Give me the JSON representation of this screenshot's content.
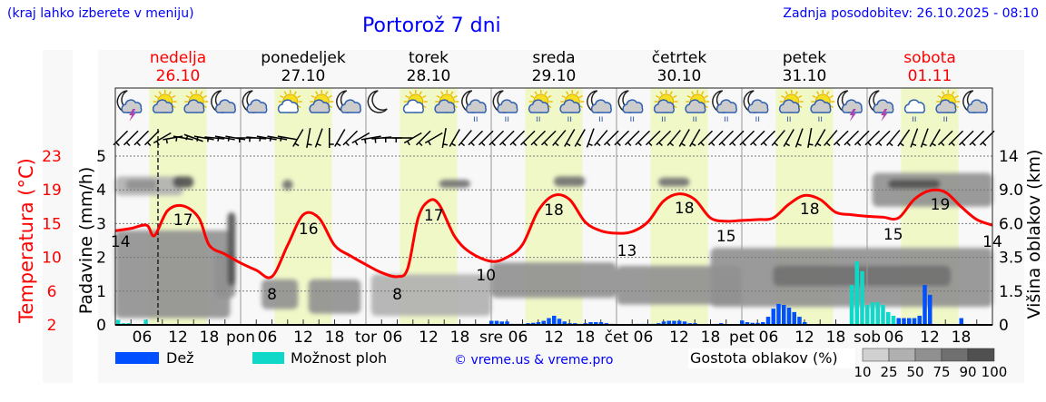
{
  "header": {
    "menu_hint": "(kraj lahko izberete v meniju)",
    "title": "Portorož 7 dni",
    "updated": "Zadnja posodobitev: 26.10.2025 - 08:10"
  },
  "footer": {
    "rain_label": "Dež",
    "showers_label": "Možnost ploh",
    "credit": "© vreme.us & vreme.pro",
    "cloud_legend_label": "Gostota oblakov (%)",
    "cloud_legend_ticks": [
      "10",
      "25",
      "50",
      "75",
      "90",
      "100"
    ]
  },
  "colors": {
    "rain": "#0050ff",
    "showers": "#10d8c8",
    "temperature": "#ff0000",
    "weekend": "#ff0000",
    "daylight": "#f0f8c8",
    "cloud_levels": [
      "#d0d0d0",
      "#b0b0b0",
      "#909090",
      "#707070",
      "#505050"
    ]
  },
  "chart_data": {
    "type": "line",
    "title": "Portorož 7 dni",
    "now_hour": 8.17,
    "days": [
      {
        "name": "nedelja",
        "date": "26.10",
        "weekend": true,
        "abbr": ""
      },
      {
        "name": "ponedeljek",
        "date": "27.10",
        "weekend": false,
        "abbr": "pon"
      },
      {
        "name": "torek",
        "date": "28.10",
        "weekend": false,
        "abbr": "tor"
      },
      {
        "name": "sreda",
        "date": "29.10",
        "weekend": false,
        "abbr": "sre"
      },
      {
        "name": "četrtek",
        "date": "30.10",
        "weekend": false,
        "abbr": "čet"
      },
      {
        "name": "petek",
        "date": "31.10",
        "weekend": false,
        "abbr": "pet"
      },
      {
        "name": "sobota",
        "date": "01.11",
        "weekend": true,
        "abbr": "sob"
      }
    ],
    "hour_ticks": [
      "06",
      "12",
      "18"
    ],
    "left_axis": {
      "label": "Padavine (mm/h)",
      "ticks": [
        "0",
        "1",
        "2",
        "3",
        "4",
        "5"
      ],
      "ylim": [
        0,
        5
      ]
    },
    "temp_axis": {
      "label": "Temperatura (°C)",
      "ticks": [
        "2",
        "6",
        "10",
        "15",
        "19",
        "23"
      ],
      "ylim": [
        2,
        23
      ]
    },
    "right_axis": {
      "label": "Višina oblakov (km)",
      "ticks": [
        "0",
        "1.5",
        "3.5",
        "6.0",
        "9.0",
        "14"
      ]
    },
    "temperature": {
      "hours": [
        0,
        3,
        6,
        7.5,
        10,
        13,
        16,
        18,
        21,
        24,
        27,
        30,
        33,
        36,
        39,
        42,
        45,
        48,
        51,
        54,
        56,
        58,
        60,
        62,
        65,
        68,
        72,
        75,
        78,
        81,
        84,
        87,
        90,
        93,
        96,
        99,
        102,
        105,
        108,
        111,
        114,
        117,
        120,
        123,
        126,
        129,
        132,
        135,
        138,
        141,
        144,
        147,
        150,
        153,
        156,
        159,
        162,
        165,
        168
      ],
      "values": [
        13.7,
        14.0,
        14.4,
        13.1,
        16.2,
        16.8,
        15.3,
        11.9,
        10.8,
        9.7,
        8.8,
        8.0,
        11.9,
        15.7,
        15.3,
        11.9,
        10.6,
        9.5,
        8.5,
        8.0,
        9.0,
        15.3,
        17.4,
        17.0,
        13.0,
        11.0,
        9.9,
        10.4,
        12.0,
        16.2,
        18.1,
        17.6,
        14.8,
        13.7,
        13.4,
        13.6,
        14.8,
        17.4,
        18.3,
        17.6,
        15.3,
        14.9,
        15.0,
        15.1,
        15.3,
        17.0,
        18.1,
        17.6,
        16.0,
        15.7,
        15.5,
        15.4,
        15.3,
        17.6,
        18.7,
        18.5,
        16.7,
        15.1,
        14.4
      ]
    },
    "temp_labels": [
      {
        "hour": 1,
        "value": "14"
      },
      {
        "hour": 13,
        "value": "17"
      },
      {
        "hour": 30,
        "value": "8"
      },
      {
        "hour": 37,
        "value": "16"
      },
      {
        "hour": 54,
        "value": "8"
      },
      {
        "hour": 61,
        "value": "17"
      },
      {
        "hour": 71,
        "value": "10"
      },
      {
        "hour": 84,
        "value": "18"
      },
      {
        "hour": 98,
        "value": "13"
      },
      {
        "hour": 109,
        "value": "18"
      },
      {
        "hour": 117,
        "value": "15"
      },
      {
        "hour": 133,
        "value": "18"
      },
      {
        "hour": 149,
        "value": "15"
      },
      {
        "hour": 158,
        "value": "19"
      },
      {
        "hour": 168,
        "value": "14"
      }
    ],
    "precipitation": [
      {
        "hour": 0.5,
        "value": 0.15,
        "type": "showers"
      },
      {
        "hour": 1.5,
        "value": 0.05,
        "type": "showers"
      },
      {
        "hour": 2.5,
        "value": 0.05,
        "type": "showers"
      },
      {
        "hour": 5.8,
        "value": 0.15,
        "type": "showers"
      },
      {
        "hour": 72,
        "value": 0.12,
        "type": "rain"
      },
      {
        "hour": 73,
        "value": 0.12,
        "type": "rain"
      },
      {
        "hour": 74,
        "value": 0.1,
        "type": "rain"
      },
      {
        "hour": 75,
        "value": 0.1,
        "type": "rain"
      },
      {
        "hour": 76,
        "value": 0.03,
        "type": "rain"
      },
      {
        "hour": 77,
        "value": 0.03,
        "type": "rain"
      },
      {
        "hour": 78,
        "value": 0.03,
        "type": "rain"
      },
      {
        "hour": 79,
        "value": 0.05,
        "type": "rain"
      },
      {
        "hour": 80,
        "value": 0.06,
        "type": "rain"
      },
      {
        "hour": 81,
        "value": 0.08,
        "type": "rain"
      },
      {
        "hour": 82,
        "value": 0.12,
        "type": "rain"
      },
      {
        "hour": 83,
        "value": 0.2,
        "type": "rain"
      },
      {
        "hour": 84,
        "value": 0.27,
        "type": "rain"
      },
      {
        "hour": 85,
        "value": 0.18,
        "type": "rain"
      },
      {
        "hour": 86,
        "value": 0.1,
        "type": "rain"
      },
      {
        "hour": 87,
        "value": 0.05,
        "type": "rain"
      },
      {
        "hour": 88,
        "value": 0.05,
        "type": "rain"
      },
      {
        "hour": 89,
        "value": 0.03,
        "type": "rain"
      },
      {
        "hour": 90,
        "value": 0.05,
        "type": "rain"
      },
      {
        "hour": 91,
        "value": 0.08,
        "type": "rain"
      },
      {
        "hour": 92,
        "value": 0.08,
        "type": "rain"
      },
      {
        "hour": 93,
        "value": 0.08,
        "type": "rain"
      },
      {
        "hour": 94,
        "value": 0.05,
        "type": "rain"
      },
      {
        "hour": 95,
        "value": 0.03,
        "type": "rain"
      },
      {
        "hour": 100,
        "value": 0.03,
        "type": "rain"
      },
      {
        "hour": 101,
        "value": 0.03,
        "type": "rain"
      },
      {
        "hour": 102,
        "value": 0.03,
        "type": "rain"
      },
      {
        "hour": 103,
        "value": 0.03,
        "type": "rain"
      },
      {
        "hour": 104,
        "value": 0.05,
        "type": "rain"
      },
      {
        "hour": 105,
        "value": 0.1,
        "type": "rain"
      },
      {
        "hour": 106,
        "value": 0.12,
        "type": "rain"
      },
      {
        "hour": 107,
        "value": 0.12,
        "type": "rain"
      },
      {
        "hour": 108,
        "value": 0.12,
        "type": "rain"
      },
      {
        "hour": 109,
        "value": 0.1,
        "type": "rain"
      },
      {
        "hour": 110,
        "value": 0.05,
        "type": "rain"
      },
      {
        "hour": 111,
        "value": 0.05,
        "type": "rain"
      },
      {
        "hour": 115,
        "value": 0.03,
        "type": "rain"
      },
      {
        "hour": 116,
        "value": 0.05,
        "type": "rain"
      },
      {
        "hour": 119,
        "value": 0.02,
        "type": "rain"
      },
      {
        "hour": 120,
        "value": 0.13,
        "type": "rain"
      },
      {
        "hour": 121,
        "value": 0.08,
        "type": "rain"
      },
      {
        "hour": 122,
        "value": 0.06,
        "type": "rain"
      },
      {
        "hour": 123,
        "value": 0.06,
        "type": "rain"
      },
      {
        "hour": 124,
        "value": 0.08,
        "type": "rain"
      },
      {
        "hour": 125,
        "value": 0.24,
        "type": "rain"
      },
      {
        "hour": 126,
        "value": 0.48,
        "type": "rain"
      },
      {
        "hour": 127,
        "value": 0.62,
        "type": "rain"
      },
      {
        "hour": 128,
        "value": 0.59,
        "type": "rain"
      },
      {
        "hour": 129,
        "value": 0.51,
        "type": "rain"
      },
      {
        "hour": 130,
        "value": 0.38,
        "type": "rain"
      },
      {
        "hour": 131,
        "value": 0.24,
        "type": "rain"
      },
      {
        "hour": 132,
        "value": 0.08,
        "type": "rain"
      },
      {
        "hour": 141,
        "value": 1.18,
        "type": "showers"
      },
      {
        "hour": 142,
        "value": 1.88,
        "type": "showers"
      },
      {
        "hour": 143,
        "value": 1.59,
        "type": "showers"
      },
      {
        "hour": 144,
        "value": 0.59,
        "type": "showers"
      },
      {
        "hour": 145,
        "value": 0.67,
        "type": "showers"
      },
      {
        "hour": 146,
        "value": 0.67,
        "type": "showers"
      },
      {
        "hour": 147,
        "value": 0.59,
        "type": "showers"
      },
      {
        "hour": 148,
        "value": 0.38,
        "type": "showers"
      },
      {
        "hour": 149,
        "value": 0.27,
        "type": "showers"
      },
      {
        "hour": 150,
        "value": 0.2,
        "type": "rain"
      },
      {
        "hour": 151,
        "value": 0.2,
        "type": "rain"
      },
      {
        "hour": 152,
        "value": 0.2,
        "type": "rain"
      },
      {
        "hour": 153,
        "value": 0.2,
        "type": "rain"
      },
      {
        "hour": 154,
        "value": 0.27,
        "type": "rain"
      },
      {
        "hour": 155,
        "value": 1.18,
        "type": "rain"
      },
      {
        "hour": 156,
        "value": 0.89,
        "type": "rain"
      },
      {
        "hour": 162,
        "value": 0.2,
        "type": "rain"
      }
    ],
    "clouds": [
      {
        "h0": 0,
        "h1": 22,
        "km0": 0.3,
        "km1": 5.5,
        "density": 50
      },
      {
        "h0": 0,
        "h1": 13,
        "km0": 8.5,
        "km1": 11,
        "density": 25
      },
      {
        "h0": 2,
        "h1": 8,
        "km0": 9,
        "km1": 10.5,
        "density": 50
      },
      {
        "h0": 11,
        "h1": 15,
        "km0": 9.3,
        "km1": 11,
        "density": 90
      },
      {
        "h0": 19,
        "h1": 23,
        "km0": 1.2,
        "km1": 4,
        "density": 50
      },
      {
        "h0": 21.5,
        "h1": 23,
        "km0": 1.8,
        "km1": 7,
        "density": 90
      },
      {
        "h0": 28,
        "h1": 35,
        "km0": 0.7,
        "km1": 2.2,
        "density": 50
      },
      {
        "h0": 37,
        "h1": 47,
        "km0": 0.5,
        "km1": 2.2,
        "density": 50
      },
      {
        "h0": 32,
        "h1": 34,
        "km0": 9,
        "km1": 10.5,
        "density": 75
      },
      {
        "h0": 49,
        "h1": 72,
        "km0": 0.4,
        "km1": 2.5,
        "density": 25
      },
      {
        "h0": 62,
        "h1": 68,
        "km0": 9.3,
        "km1": 10.5,
        "density": 75
      },
      {
        "h0": 72,
        "h1": 96,
        "km0": 1.2,
        "km1": 3.2,
        "density": 50
      },
      {
        "h0": 84,
        "h1": 90,
        "km0": 9.5,
        "km1": 11,
        "density": 75
      },
      {
        "h0": 96,
        "h1": 120,
        "km0": 0.9,
        "km1": 3,
        "density": 50
      },
      {
        "h0": 104,
        "h1": 110,
        "km0": 9.5,
        "km1": 10.8,
        "density": 75
      },
      {
        "h0": 114,
        "h1": 168,
        "km0": 0.8,
        "km1": 4.2,
        "density": 50
      },
      {
        "h0": 126,
        "h1": 160,
        "km0": 1.8,
        "km1": 3,
        "density": 75
      },
      {
        "h0": 145,
        "h1": 168,
        "km0": 7.5,
        "km1": 11.5,
        "density": 50
      },
      {
        "h0": 148,
        "h1": 158,
        "km0": 9.2,
        "km1": 10.5,
        "density": 90
      }
    ],
    "weather_icons": [
      "moon-cloud-thunder",
      "sun-cloud",
      "sun-cloud",
      "moon-cloud",
      "moon-cloud",
      "sun-cloud-white",
      "sun-cloud",
      "moon-cloud",
      "moon",
      "sun-cloud-white",
      "sun-cloud",
      "moon-cloud-rain",
      "moon-cloud-rain",
      "sun-cloud-rain",
      "sun-cloud-rain",
      "moon-cloud-rain",
      "moon-cloud-rain",
      "sun-cloud-rain",
      "sun-cloud-rain",
      "moon-cloud-rain",
      "moon-cloud-rain",
      "sun-cloud-rain",
      "sun-cloud-rain",
      "moon-cloud-thunder",
      "moon-cloud-thunder",
      "cloud-rain",
      "sun-cloud-rain",
      "moon-cloud"
    ],
    "wind_directions_deg": [
      45,
      45,
      45,
      45,
      60,
      80,
      100,
      110,
      100,
      95,
      100,
      100,
      90,
      95,
      100,
      100,
      100,
      30,
      10,
      20,
      0,
      30,
      45,
      60,
      80,
      85,
      90,
      90,
      60,
      45,
      60,
      10,
      30,
      40,
      45,
      45,
      45,
      45,
      45,
      45,
      45,
      45,
      40,
      30,
      30,
      20,
      40,
      45,
      45,
      45,
      45,
      45,
      45,
      40,
      30,
      30,
      45,
      45,
      45,
      45,
      45,
      45,
      45,
      40,
      30,
      20,
      10,
      30,
      40,
      45,
      45,
      45,
      45,
      45,
      40,
      35,
      20,
      20,
      30,
      45,
      45,
      45,
      45,
      45
    ]
  }
}
